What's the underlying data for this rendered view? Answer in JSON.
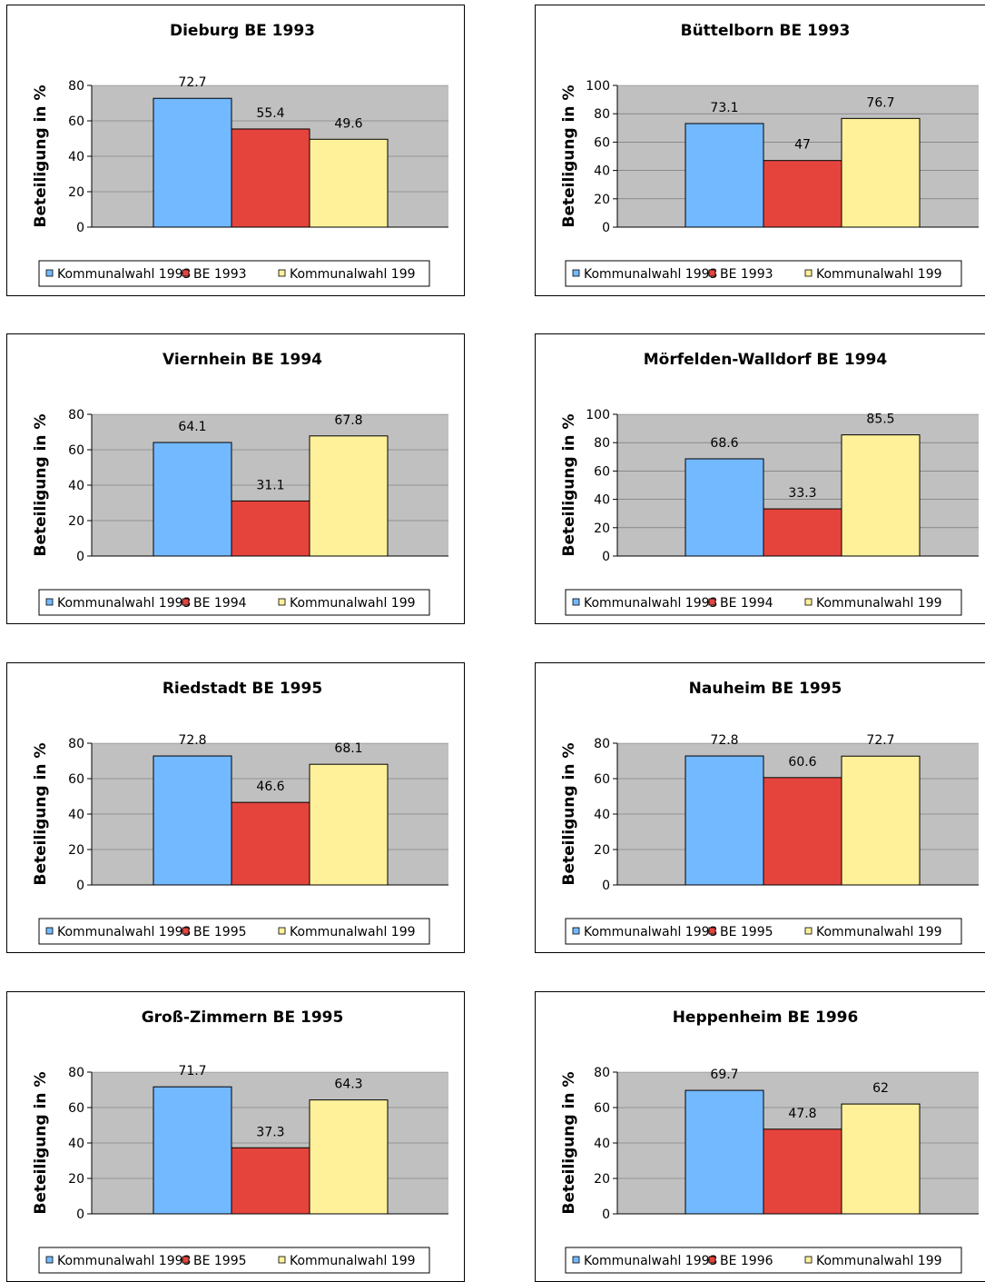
{
  "colors": {
    "plot_bg": "#c0c0c0",
    "series": [
      "#73b9ff",
      "#e5443d",
      "#fff19a"
    ]
  },
  "chart_data": [
    {
      "type": "bar",
      "title": "Dieburg BE 1993",
      "ylabel": "Beteiligung in %",
      "ylim": [
        0,
        80
      ],
      "yticks": [
        0,
        20,
        40,
        60,
        80
      ],
      "series": [
        {
          "name": "Kommunalwahl 1993",
          "value": 72.7
        },
        {
          "name": "BE 1993",
          "value": 55.4
        },
        {
          "name": "Kommunalwahl 199",
          "value": 49.6
        }
      ]
    },
    {
      "type": "bar",
      "title": "Büttelborn BE 1993",
      "ylabel": "Beteiligung in %",
      "ylim": [
        0,
        100
      ],
      "yticks": [
        0,
        20,
        40,
        60,
        80,
        100
      ],
      "series": [
        {
          "name": "Kommunalwahl 1993",
          "value": 73.1
        },
        {
          "name": "BE 1993",
          "value": 47
        },
        {
          "name": "Kommunalwahl 199",
          "value": 76.7
        }
      ]
    },
    {
      "type": "bar",
      "title": "Viernhein BE 1994",
      "ylabel": "Beteiligung in %",
      "ylim": [
        0,
        80
      ],
      "yticks": [
        0,
        20,
        40,
        60,
        80
      ],
      "series": [
        {
          "name": "Kommunalwahl 1993",
          "value": 64.1
        },
        {
          "name": "BE 1994",
          "value": 31.1
        },
        {
          "name": "Kommunalwahl 199",
          "value": 67.8
        }
      ]
    },
    {
      "type": "bar",
      "title": "Mörfelden-Walldorf BE 1994",
      "ylabel": "Beteiligung in %",
      "ylim": [
        0,
        100
      ],
      "yticks": [
        0,
        20,
        40,
        60,
        80,
        100
      ],
      "series": [
        {
          "name": "Kommunalwahl 1993",
          "value": 68.6
        },
        {
          "name": "BE 1994",
          "value": 33.3
        },
        {
          "name": "Kommunalwahl 199",
          "value": 85.5
        }
      ]
    },
    {
      "type": "bar",
      "title": "Riedstadt BE 1995",
      "ylabel": "Beteiligung in %",
      "ylim": [
        0,
        80
      ],
      "yticks": [
        0,
        20,
        40,
        60,
        80
      ],
      "series": [
        {
          "name": "Kommunalwahl 1993",
          "value": 72.8
        },
        {
          "name": "BE 1995",
          "value": 46.6
        },
        {
          "name": "Kommunalwahl 199",
          "value": 68.1
        }
      ]
    },
    {
      "type": "bar",
      "title": "Nauheim BE 1995",
      "ylabel": "Beteiligung in %",
      "ylim": [
        0,
        80
      ],
      "yticks": [
        0,
        20,
        40,
        60,
        80
      ],
      "series": [
        {
          "name": "Kommunalwahl 1993",
          "value": 72.8
        },
        {
          "name": "BE 1995",
          "value": 60.6
        },
        {
          "name": "Kommunalwahl 199",
          "value": 72.7
        }
      ]
    },
    {
      "type": "bar",
      "title": "Groß-Zimmern BE 1995",
      "ylabel": "Beteiligung in %",
      "ylim": [
        0,
        80
      ],
      "yticks": [
        0,
        20,
        40,
        60,
        80
      ],
      "series": [
        {
          "name": "Kommunalwahl 1993",
          "value": 71.7
        },
        {
          "name": "BE 1995",
          "value": 37.3
        },
        {
          "name": "Kommunalwahl 199",
          "value": 64.3
        }
      ]
    },
    {
      "type": "bar",
      "title": "Heppenheim BE 1996",
      "ylabel": "Beteiligung in %",
      "ylim": [
        0,
        80
      ],
      "yticks": [
        0,
        20,
        40,
        60,
        80
      ],
      "series": [
        {
          "name": "Kommunalwahl 1993",
          "value": 69.7
        },
        {
          "name": "BE 1996",
          "value": 47.8
        },
        {
          "name": "Kommunalwahl 199",
          "value": 62
        }
      ]
    }
  ]
}
